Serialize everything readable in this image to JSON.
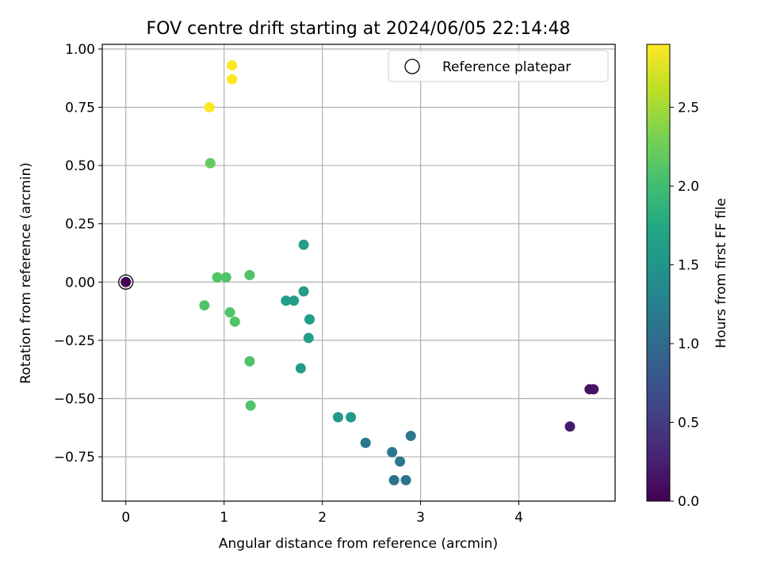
{
  "chart_data": {
    "type": "scatter",
    "title": "FOV centre drift starting at 2024/06/05 22:14:48",
    "xlabel": "Angular distance from reference (arcmin)",
    "ylabel": "Rotation from reference (arcmin)",
    "xlim": [
      -0.24,
      4.98
    ],
    "ylim": [
      -0.94,
      1.02
    ],
    "xticks": [
      0,
      1,
      2,
      3,
      4
    ],
    "xtick_labels": [
      "0",
      "1",
      "2",
      "3",
      "4"
    ],
    "yticks": [
      -0.75,
      -0.5,
      -0.25,
      0.0,
      0.25,
      0.5,
      0.75,
      1.0
    ],
    "ytick_labels": [
      "−0.75",
      "−0.50",
      "−0.25",
      "0.00",
      "0.25",
      "0.50",
      "0.75",
      "1.00"
    ],
    "grid": true,
    "legend": {
      "position": "upper right",
      "entries": [
        "Reference platepar"
      ]
    },
    "colorbar": {
      "label": "Hours from first FF file",
      "colormap": "viridis",
      "range": [
        0.0,
        2.9
      ],
      "ticks": [
        0.0,
        0.5,
        1.0,
        1.5,
        2.0,
        2.5
      ],
      "tick_labels": [
        "0.0",
        "0.5",
        "1.0",
        "1.5",
        "2.0",
        "2.5"
      ]
    },
    "reference_point": {
      "x": 0.0,
      "y": 0.0
    },
    "points": [
      {
        "x": 0.0,
        "y": 0.0,
        "c": 0.0
      },
      {
        "x": 4.52,
        "y": -0.62,
        "c": 0.2
      },
      {
        "x": 4.72,
        "y": -0.46,
        "c": 0.15
      },
      {
        "x": 4.76,
        "y": -0.46,
        "c": 0.15
      },
      {
        "x": 2.44,
        "y": -0.69,
        "c": 1.15
      },
      {
        "x": 2.71,
        "y": -0.73,
        "c": 1.15
      },
      {
        "x": 2.79,
        "y": -0.77,
        "c": 1.15
      },
      {
        "x": 2.9,
        "y": -0.66,
        "c": 1.15
      },
      {
        "x": 2.73,
        "y": -0.85,
        "c": 1.1
      },
      {
        "x": 2.85,
        "y": -0.85,
        "c": 1.1
      },
      {
        "x": 2.16,
        "y": -0.58,
        "c": 1.55
      },
      {
        "x": 2.29,
        "y": -0.58,
        "c": 1.55
      },
      {
        "x": 1.81,
        "y": 0.16,
        "c": 1.6
      },
      {
        "x": 1.81,
        "y": -0.04,
        "c": 1.6
      },
      {
        "x": 1.71,
        "y": -0.08,
        "c": 1.6
      },
      {
        "x": 1.63,
        "y": -0.08,
        "c": 1.6
      },
      {
        "x": 1.87,
        "y": -0.16,
        "c": 1.6
      },
      {
        "x": 1.86,
        "y": -0.24,
        "c": 1.6
      },
      {
        "x": 1.78,
        "y": -0.37,
        "c": 1.6
      },
      {
        "x": 1.26,
        "y": 0.03,
        "c": 2.1
      },
      {
        "x": 0.93,
        "y": 0.02,
        "c": 2.1
      },
      {
        "x": 1.02,
        "y": 0.02,
        "c": 2.1
      },
      {
        "x": 0.8,
        "y": -0.1,
        "c": 2.1
      },
      {
        "x": 1.06,
        "y": -0.13,
        "c": 2.1
      },
      {
        "x": 1.11,
        "y": -0.17,
        "c": 2.1
      },
      {
        "x": 1.26,
        "y": -0.34,
        "c": 2.1
      },
      {
        "x": 1.27,
        "y": -0.53,
        "c": 2.1
      },
      {
        "x": 0.86,
        "y": 0.51,
        "c": 2.2
      },
      {
        "x": 0.85,
        "y": 0.75,
        "c": 2.9
      },
      {
        "x": 1.08,
        "y": 0.87,
        "c": 2.9
      },
      {
        "x": 1.08,
        "y": 0.93,
        "c": 2.9
      }
    ]
  }
}
